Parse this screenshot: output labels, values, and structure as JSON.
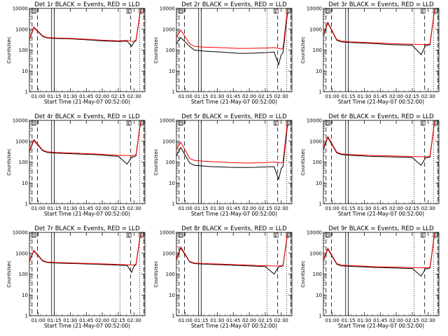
{
  "chart_data": [
    {
      "type": "line",
      "title": "Det 1r BLACK = Events, RED = LLD",
      "xlabel": "Start Time (21-May-07 00:52:00)",
      "ylabel": "Counts/sec",
      "xticks": [
        "01:00",
        "01:15",
        "01:30",
        "01:45",
        "02:00",
        "02:15",
        "02:30"
      ],
      "yticks": [
        "1",
        "10",
        "100",
        "1000",
        "10000"
      ],
      "yscale": "log",
      "ylim": [
        1,
        10000
      ],
      "markers": [
        "D",
        "E",
        "S"
      ],
      "series": [
        {
          "name": "BLACK = Events",
          "color": "#000000",
          "x": [
            0.0,
            0.5,
            1.5,
            2.0,
            3.0,
            4.0,
            5.0,
            6.0,
            7.0,
            8.0,
            9.0,
            10.0,
            11.0,
            11.5,
            11.8,
            12.0,
            12.5
          ],
          "y": [
            300,
            1200,
            450,
            380,
            360,
            350,
            340,
            320,
            300,
            280,
            270,
            260,
            270,
            150,
            250,
            280,
            8000
          ]
        },
        {
          "name": "RED = LLD",
          "color": "#ff0000",
          "x": [
            0.0,
            0.5,
            1.5,
            2.0,
            3.0,
            4.0,
            5.0,
            6.0,
            7.0,
            8.0,
            9.0,
            10.0,
            11.0,
            11.5,
            11.8,
            12.0,
            12.5
          ],
          "y": [
            320,
            1300,
            480,
            400,
            380,
            370,
            360,
            340,
            320,
            300,
            290,
            280,
            290,
            260,
            270,
            300,
            9000
          ]
        }
      ]
    },
    {
      "type": "line",
      "title": "Det 2r BLACK = Events, RED = LLD",
      "xlabel": "Start Time (21-May-07 00:52:00)",
      "ylabel": "Counts/sec",
      "xticks": [
        "01:00",
        "01:15",
        "01:30",
        "01:45",
        "02:00",
        "02:15",
        "02:30"
      ],
      "yticks": [
        "1",
        "10",
        "100",
        "1000",
        "10000"
      ],
      "yscale": "log",
      "ylim": [
        1,
        10000
      ],
      "markers": [
        "D",
        "E",
        "S"
      ],
      "series": [
        {
          "name": "BLACK = Events",
          "color": "#000000",
          "x": [
            0.0,
            0.5,
            1.5,
            2.0,
            3.0,
            4.0,
            5.0,
            6.0,
            7.0,
            8.0,
            9.0,
            10.0,
            11.0,
            11.5,
            11.8,
            12.0,
            12.5
          ],
          "y": [
            200,
            400,
            150,
            100,
            90,
            85,
            80,
            75,
            70,
            70,
            72,
            75,
            80,
            20,
            60,
            75,
            6000
          ]
        },
        {
          "name": "RED = LLD",
          "color": "#ff0000",
          "x": [
            0.0,
            0.5,
            1.5,
            2.0,
            3.0,
            4.0,
            5.0,
            6.0,
            7.0,
            8.0,
            9.0,
            10.0,
            11.0,
            11.5,
            11.8,
            12.0,
            12.5
          ],
          "y": [
            400,
            900,
            200,
            150,
            140,
            135,
            130,
            125,
            120,
            120,
            122,
            125,
            130,
            120,
            110,
            125,
            9000
          ]
        }
      ]
    },
    {
      "type": "line",
      "title": "Det 3r BLACK = Events, RED = LLD",
      "xlabel": "Start Time (21-May-07 00:52:00)",
      "ylabel": "Counts/sec",
      "xticks": [
        "01:00",
        "01:15",
        "01:30",
        "01:45",
        "02:00",
        "02:15",
        "02:30"
      ],
      "yticks": [
        "1",
        "10",
        "100",
        "1000",
        "10000"
      ],
      "yscale": "log",
      "ylim": [
        1,
        10000
      ],
      "markers": [
        "D",
        "E",
        "S"
      ],
      "series": [
        {
          "name": "BLACK = Events",
          "color": "#000000",
          "x": [
            0.0,
            0.5,
            1.5,
            2.0,
            3.0,
            4.0,
            5.0,
            6.0,
            7.0,
            8.0,
            9.0,
            10.0,
            11.0,
            11.5,
            11.8,
            12.0,
            12.5
          ],
          "y": [
            500,
            2000,
            300,
            250,
            230,
            220,
            210,
            200,
            190,
            180,
            175,
            170,
            60,
            165,
            170,
            180,
            8000
          ]
        },
        {
          "name": "RED = LLD",
          "color": "#ff0000",
          "x": [
            0.0,
            0.5,
            1.5,
            2.0,
            3.0,
            4.0,
            5.0,
            6.0,
            7.0,
            8.0,
            9.0,
            10.0,
            11.0,
            11.5,
            11.8,
            12.0,
            12.5
          ],
          "y": [
            550,
            2200,
            320,
            270,
            250,
            240,
            230,
            220,
            210,
            200,
            195,
            190,
            185,
            185,
            190,
            200,
            9000
          ]
        }
      ]
    },
    {
      "type": "line",
      "title": "Det 4r BLACK = Events, RED = LLD",
      "xlabel": "Start Time (21-May-07 00:52:00)",
      "ylabel": "Counts/sec",
      "xticks": [
        "01:00",
        "01:15",
        "01:30",
        "01:45",
        "02:00",
        "02:15",
        "02:30"
      ],
      "yticks": [
        "1",
        "10",
        "100",
        "1000",
        "10000"
      ],
      "yscale": "log",
      "ylim": [
        1,
        10000
      ],
      "markers": [
        "D",
        "E",
        "S"
      ],
      "series": [
        {
          "name": "BLACK = Events",
          "color": "#000000",
          "x": [
            0.0,
            0.5,
            1.5,
            2.0,
            3.0,
            4.0,
            5.0,
            6.0,
            7.0,
            8.0,
            9.0,
            10.0,
            11.0,
            11.5,
            11.8,
            12.0,
            12.5
          ],
          "y": [
            300,
            1100,
            350,
            290,
            270,
            260,
            250,
            240,
            230,
            220,
            200,
            190,
            80,
            170,
            180,
            200,
            8000
          ]
        },
        {
          "name": "RED = LLD",
          "color": "#ff0000",
          "x": [
            0.0,
            0.5,
            1.5,
            2.0,
            3.0,
            4.0,
            5.0,
            6.0,
            7.0,
            8.0,
            9.0,
            10.0,
            11.0,
            11.5,
            11.8,
            12.0,
            12.5
          ],
          "y": [
            330,
            1200,
            380,
            310,
            290,
            280,
            270,
            260,
            250,
            240,
            220,
            210,
            205,
            200,
            210,
            220,
            9000
          ]
        }
      ]
    },
    {
      "type": "line",
      "title": "Det 5r BLACK = Events, RED = LLD",
      "xlabel": "Start Time (21-May-07 00:52:00)",
      "ylabel": "Counts/sec",
      "xticks": [
        "01:00",
        "01:15",
        "01:30",
        "01:45",
        "02:00",
        "02:15",
        "02:30"
      ],
      "yticks": [
        "1",
        "10",
        "100",
        "1000",
        "10000"
      ],
      "yscale": "log",
      "ylim": [
        1,
        10000
      ],
      "markers": [
        "D",
        "E",
        "S"
      ],
      "series": [
        {
          "name": "BLACK = Events",
          "color": "#000000",
          "x": [
            0.0,
            0.5,
            1.5,
            2.0,
            3.0,
            4.0,
            5.0,
            6.0,
            7.0,
            8.0,
            9.0,
            10.0,
            11.0,
            11.5,
            11.8,
            12.0,
            12.5
          ],
          "y": [
            200,
            500,
            90,
            70,
            65,
            60,
            58,
            56,
            55,
            55,
            56,
            58,
            60,
            15,
            50,
            60,
            6000
          ]
        },
        {
          "name": "RED = LLD",
          "color": "#ff0000",
          "x": [
            0.0,
            0.5,
            1.5,
            2.0,
            3.0,
            4.0,
            5.0,
            6.0,
            7.0,
            8.0,
            9.0,
            10.0,
            11.0,
            11.5,
            11.8,
            12.0,
            12.5
          ],
          "y": [
            400,
            900,
            150,
            120,
            110,
            105,
            100,
            95,
            92,
            90,
            92,
            95,
            100,
            95,
            90,
            100,
            9000
          ]
        }
      ]
    },
    {
      "type": "line",
      "title": "Det 6r BLACK = Events, RED = LLD",
      "xlabel": "Start Time (21-May-07 00:52:00)",
      "ylabel": "Counts/sec",
      "xticks": [
        "01:00",
        "01:15",
        "01:30",
        "01:45",
        "02:00",
        "02:15",
        "02:30"
      ],
      "yticks": [
        "1",
        "10",
        "100",
        "1000",
        "10000"
      ],
      "yscale": "log",
      "ylim": [
        1,
        10000
      ],
      "markers": [
        "D",
        "E",
        "S"
      ],
      "series": [
        {
          "name": "BLACK = Events",
          "color": "#000000",
          "x": [
            0.0,
            0.5,
            1.5,
            2.0,
            3.0,
            4.0,
            5.0,
            6.0,
            7.0,
            8.0,
            9.0,
            10.0,
            11.0,
            11.5,
            11.8,
            12.0,
            12.5
          ],
          "y": [
            400,
            1500,
            280,
            230,
            210,
            200,
            190,
            185,
            180,
            175,
            170,
            165,
            70,
            160,
            165,
            175,
            8000
          ]
        },
        {
          "name": "RED = LLD",
          "color": "#ff0000",
          "x": [
            0.0,
            0.5,
            1.5,
            2.0,
            3.0,
            4.0,
            5.0,
            6.0,
            7.0,
            8.0,
            9.0,
            10.0,
            11.0,
            11.5,
            11.8,
            12.0,
            12.5
          ],
          "y": [
            450,
            1700,
            300,
            250,
            230,
            220,
            210,
            205,
            200,
            195,
            190,
            185,
            180,
            180,
            185,
            195,
            9000
          ]
        }
      ]
    },
    {
      "type": "line",
      "title": "Det 7r BLACK = Events, RED = LLD",
      "xlabel": "Start Time (21-May-07 00:52:00)",
      "ylabel": "Counts/sec",
      "xticks": [
        "01:00",
        "01:15",
        "01:30",
        "01:45",
        "02:00",
        "02:15",
        "02:30"
      ],
      "yticks": [
        "1",
        "10",
        "100",
        "1000",
        "10000"
      ],
      "yscale": "log",
      "ylim": [
        1,
        10000
      ],
      "markers": [
        "D",
        "E",
        "S"
      ],
      "series": [
        {
          "name": "BLACK = Events",
          "color": "#000000",
          "x": [
            0.0,
            0.5,
            1.5,
            2.0,
            3.0,
            4.0,
            5.0,
            6.0,
            7.0,
            8.0,
            9.0,
            10.0,
            11.0,
            11.5,
            11.8,
            12.0,
            12.5
          ],
          "y": [
            400,
            1300,
            420,
            360,
            340,
            330,
            320,
            310,
            300,
            290,
            280,
            270,
            260,
            120,
            250,
            280,
            8000
          ]
        },
        {
          "name": "RED = LLD",
          "color": "#ff0000",
          "x": [
            0.0,
            0.5,
            1.5,
            2.0,
            3.0,
            4.0,
            5.0,
            6.0,
            7.0,
            8.0,
            9.0,
            10.0,
            11.0,
            11.5,
            11.8,
            12.0,
            12.5
          ],
          "y": [
            430,
            1400,
            450,
            380,
            360,
            350,
            340,
            330,
            320,
            310,
            300,
            290,
            280,
            270,
            275,
            300,
            9000
          ]
        }
      ]
    },
    {
      "type": "line",
      "title": "Det 8r BLACK = Events, RED = LLD",
      "xlabel": "Start Time (21-May-07 00:52:00)",
      "ylabel": "Counts/sec",
      "xticks": [
        "01:00",
        "01:15",
        "01:30",
        "01:45",
        "02:00",
        "02:15",
        "02:30"
      ],
      "yticks": [
        "1",
        "10",
        "100",
        "1000",
        "10000"
      ],
      "yscale": "log",
      "ylim": [
        1,
        10000
      ],
      "markers": [
        "D",
        "E",
        "S"
      ],
      "series": [
        {
          "name": "BLACK = Events",
          "color": "#000000",
          "x": [
            0.0,
            0.5,
            1.5,
            2.0,
            3.0,
            4.0,
            5.0,
            6.0,
            7.0,
            8.0,
            9.0,
            10.0,
            11.0,
            11.5,
            11.8,
            12.0,
            12.5
          ],
          "y": [
            500,
            1800,
            380,
            320,
            300,
            290,
            280,
            270,
            260,
            250,
            240,
            230,
            100,
            220,
            230,
            250,
            8000
          ]
        },
        {
          "name": "RED = LLD",
          "color": "#ff0000",
          "x": [
            0.0,
            0.5,
            1.5,
            2.0,
            3.0,
            4.0,
            5.0,
            6.0,
            7.0,
            8.0,
            9.0,
            10.0,
            11.0,
            11.5,
            11.8,
            12.0,
            12.5
          ],
          "y": [
            550,
            2000,
            400,
            340,
            320,
            310,
            300,
            290,
            280,
            270,
            260,
            250,
            245,
            245,
            250,
            270,
            9000
          ]
        }
      ]
    },
    {
      "type": "line",
      "title": "Det 9r BLACK = Events, RED = LLD",
      "xlabel": "Start Time (21-May-07 00:52:00)",
      "ylabel": "Counts/sec",
      "xticks": [
        "01:00",
        "01:15",
        "01:30",
        "01:45",
        "02:00",
        "02:15",
        "02:30"
      ],
      "yticks": [
        "1",
        "10",
        "100",
        "1000",
        "10000"
      ],
      "yscale": "log",
      "ylim": [
        1,
        10000
      ],
      "markers": [
        "D",
        "E",
        "S"
      ],
      "series": [
        {
          "name": "BLACK = Events",
          "color": "#000000",
          "x": [
            0.0,
            0.5,
            1.5,
            2.0,
            3.0,
            4.0,
            5.0,
            6.0,
            7.0,
            8.0,
            9.0,
            10.0,
            11.0,
            11.5,
            11.8,
            12.0,
            12.5
          ],
          "y": [
            450,
            1600,
            300,
            250,
            235,
            225,
            215,
            205,
            200,
            195,
            190,
            185,
            80,
            180,
            185,
            195,
            8000
          ]
        },
        {
          "name": "RED = LLD",
          "color": "#ff0000",
          "x": [
            0.0,
            0.5,
            1.5,
            2.0,
            3.0,
            4.0,
            5.0,
            6.0,
            7.0,
            8.0,
            9.0,
            10.0,
            11.0,
            11.5,
            11.8,
            12.0,
            12.5
          ],
          "y": [
            480,
            1750,
            320,
            270,
            255,
            245,
            235,
            225,
            220,
            215,
            210,
            205,
            200,
            200,
            205,
            215,
            9000
          ]
        }
      ]
    }
  ]
}
